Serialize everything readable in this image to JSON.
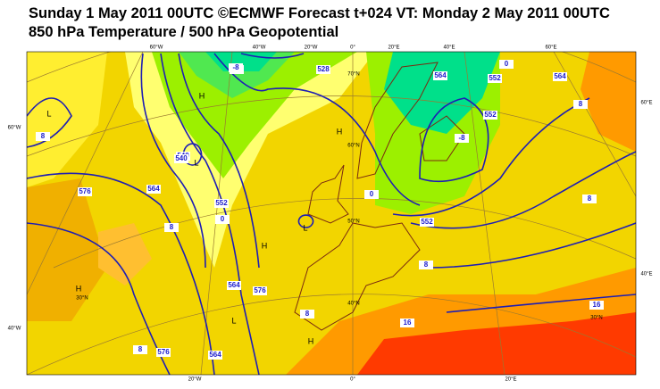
{
  "header": {
    "title": "Sunday 1 May 2011 00UTC ©ECMWF Forecast t+024 VT: Monday 2 May 2011 00UTC",
    "subtitle": "850 hPa Temperature / 500 hPa Geopotential"
  },
  "grid_labels": [
    "60°W",
    "40°W",
    "20°W",
    "0°",
    "20°E",
    "40°E",
    "60°E",
    "60°E",
    "40°E",
    "60°W",
    "40°W",
    "20°W",
    "0°",
    "20°E",
    "70°N",
    "60°N",
    "50°N",
    "40°N",
    "30°N",
    "30°N"
  ],
  "contour_labels": [
    "-8",
    "528",
    "540",
    "552",
    "0",
    "564",
    "576",
    "8",
    "0",
    "552",
    "564",
    "-8",
    "0",
    "552",
    "564",
    "8",
    "552",
    "8",
    "16",
    "8",
    "576",
    "16",
    "8",
    "564",
    "576",
    "564",
    "8",
    "8",
    "540",
    "-8"
  ],
  "pressure_centers": [
    "H",
    "L",
    "L",
    "H",
    "L",
    "H",
    "H",
    "L",
    "H"
  ]
}
